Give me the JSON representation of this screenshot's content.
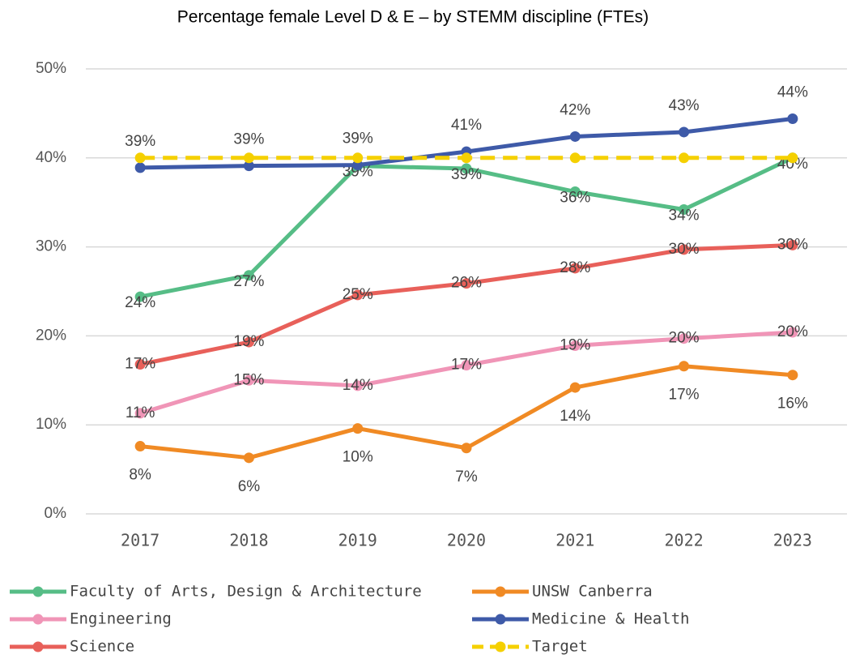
{
  "chart_data": {
    "type": "line",
    "title": "Percentage female Level D & E – by STEMM discipline (FTEs)",
    "categories": [
      "2017",
      "2018",
      "2019",
      "2020",
      "2021",
      "2022",
      "2023"
    ],
    "ylim": [
      0,
      50
    ],
    "yticks": [
      {
        "value": 0,
        "label": "0%"
      },
      {
        "value": 10,
        "label": "10%"
      },
      {
        "value": 20,
        "label": "20%"
      },
      {
        "value": 30,
        "label": "30%"
      },
      {
        "value": 40,
        "label": "40%"
      },
      {
        "value": 50,
        "label": "50%"
      }
    ],
    "grid": true,
    "legend": "bottom",
    "series": [
      {
        "name": "Faculty of Arts, Design & Architecture",
        "color": "#56bd86",
        "values": [
          24.4,
          26.8,
          39.1,
          38.8,
          36.2,
          34.2,
          40.0
        ],
        "value_labels": [
          "24%",
          "27%",
          "39%",
          "39%",
          "36%",
          "34%",
          "40%"
        ]
      },
      {
        "name": "UNSW Canberra",
        "color": "#f08a24",
        "values": [
          7.6,
          6.3,
          9.6,
          7.4,
          14.2,
          16.6,
          15.6
        ],
        "value_labels": [
          "8%",
          "6%",
          "10%",
          "7%",
          "14%",
          "17%",
          "16%"
        ]
      },
      {
        "name": "Engineering",
        "color": "#f095b7",
        "values": [
          11.3,
          15.0,
          14.4,
          16.7,
          18.9,
          19.7,
          20.4
        ],
        "value_labels": [
          "11%",
          "15%",
          "14%",
          "17%",
          "19%",
          "20%",
          "20%"
        ]
      },
      {
        "name": "Medicine & Health",
        "color": "#3e5aa8",
        "values": [
          38.9,
          39.1,
          39.2,
          40.7,
          42.4,
          42.9,
          44.4
        ],
        "value_labels": [
          "39%",
          "39%",
          "39%",
          "41%",
          "42%",
          "43%",
          "44%"
        ]
      },
      {
        "name": "Science",
        "color": "#e8605a",
        "values": [
          16.8,
          19.3,
          24.6,
          25.9,
          27.6,
          29.7,
          30.2
        ],
        "value_labels": [
          "17%",
          "19%",
          "25%",
          "26%",
          "28%",
          "30%",
          "30%"
        ]
      },
      {
        "name": "Target",
        "color": "#f5d000",
        "dashed": true,
        "values": [
          40,
          40,
          40,
          40,
          40,
          40,
          40
        ]
      }
    ]
  }
}
